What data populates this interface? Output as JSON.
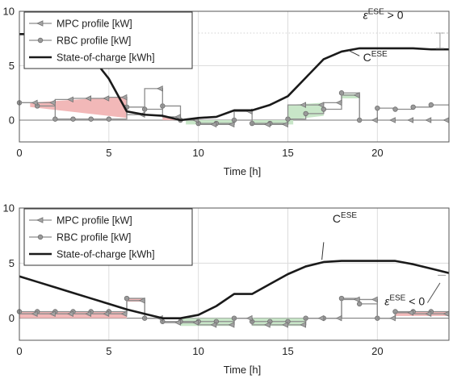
{
  "colors": {
    "mpc": "#8c8c8c",
    "rbc": "#8c8c8c",
    "soc": "#1a1a1a",
    "charge_fill": "#f2b8b8",
    "discharge_fill": "#c8e6c8",
    "grid": "#dcdcdc",
    "axis": "#555555"
  },
  "chart_data": [
    {
      "type": "line",
      "xlabel": "Time [h]",
      "xlim": [
        0,
        24
      ],
      "ylim": [
        -2,
        10
      ],
      "xticks": [
        0,
        5,
        10,
        15,
        20
      ],
      "yticks": [
        0,
        5,
        10
      ],
      "grid": true,
      "legend_placement": "top-left",
      "legend": [
        "MPC profile [kW]",
        "RBC profile [kW]",
        "State-of-charge [kWh]"
      ],
      "series": [
        {
          "name": "MPC profile [kW]",
          "x": [
            0,
            1,
            2,
            3,
            4,
            5,
            6,
            7,
            8,
            9,
            10,
            11,
            12,
            13,
            14,
            15,
            16,
            17,
            18,
            19,
            20,
            21,
            22,
            23
          ],
          "values": [
            1.6,
            1.6,
            1.9,
            2.0,
            2.0,
            2.1,
            0.5,
            2.9,
            0.3,
            0.0,
            -0.4,
            -0.4,
            0.8,
            -0.4,
            -0.4,
            1.4,
            1.4,
            1.6,
            2.3,
            0.0,
            0.0,
            0.0,
            0.0,
            0.0
          ]
        },
        {
          "name": "RBC profile [kW]",
          "x": [
            0,
            1,
            2,
            3,
            4,
            5,
            6,
            7,
            8,
            9,
            10,
            11,
            12,
            13,
            14,
            15,
            16,
            17,
            18,
            19,
            20,
            21,
            22,
            23
          ],
          "values": [
            1.6,
            1.3,
            0.1,
            0.1,
            0.1,
            0.1,
            1.2,
            1.0,
            1.3,
            0.0,
            -0.3,
            -0.3,
            0.0,
            -0.3,
            -0.3,
            0.1,
            0.6,
            1.0,
            2.5,
            0.0,
            1.1,
            1.0,
            1.2,
            1.4
          ]
        },
        {
          "name": "State-of-charge [kWh]",
          "x": [
            0,
            1,
            2,
            3,
            4,
            5,
            6,
            7,
            8,
            9,
            10,
            11,
            12,
            13,
            14,
            15,
            16,
            17,
            18,
            19,
            20,
            21,
            22,
            23,
            24
          ],
          "values": [
            7.9,
            7.9,
            7.8,
            7.0,
            5.9,
            3.8,
            0.8,
            0.5,
            0.4,
            0.0,
            0.2,
            0.3,
            0.9,
            0.9,
            1.4,
            2.2,
            3.9,
            5.6,
            6.3,
            6.6,
            6.6,
            6.6,
            6.6,
            6.5,
            6.5
          ]
        }
      ],
      "shaded_regions": [
        {
          "type": "charge",
          "x0": 0.6,
          "x1": 6,
          "lower": [
            1.2,
            0.2
          ],
          "upper": [
            1.6,
            2.2
          ]
        },
        {
          "type": "charge",
          "x0": 8,
          "x1": 9,
          "lower": [
            0.0,
            0.0
          ],
          "upper": [
            0.3,
            0.1
          ]
        },
        {
          "type": "discharge",
          "x0": 9.3,
          "x1": 12,
          "lower": [
            -0.4,
            -0.4
          ],
          "upper": [
            0.0,
            0.0
          ]
        },
        {
          "type": "discharge",
          "x0": 13,
          "x1": 15.3,
          "lower": [
            -0.4,
            -0.4
          ],
          "upper": [
            0.0,
            0.0
          ]
        },
        {
          "type": "discharge",
          "x0": 15,
          "x1": 17,
          "lower": [
            0.0,
            0.4
          ],
          "upper": [
            1.4,
            1.6
          ]
        },
        {
          "type": "discharge",
          "x0": 18,
          "x1": 19,
          "lower": [
            2.0,
            2.0
          ],
          "upper": [
            2.4,
            2.4
          ]
        }
      ],
      "annotations": [
        {
          "text_base": "C",
          "text_sup": "ESE",
          "x": 19.2,
          "y": 5.4
        },
        {
          "text_base": "ε",
          "text_sup": "ESE",
          "text_rest": " > 0",
          "x": 19.2,
          "y": 9.3
        }
      ]
    },
    {
      "type": "line",
      "xlabel": "Time [h]",
      "xlim": [
        0,
        24
      ],
      "ylim": [
        -2,
        10
      ],
      "xticks": [
        0,
        5,
        10,
        15,
        20
      ],
      "yticks": [
        0,
        5,
        10
      ],
      "grid": true,
      "legend_placement": "top-left",
      "legend": [
        "MPC profile [kW]",
        "RBC profile [kW]",
        "State-of-charge [kWh]"
      ],
      "series": [
        {
          "name": "MPC profile [kW]",
          "x": [
            0,
            1,
            2,
            3,
            4,
            5,
            6,
            7,
            8,
            9,
            10,
            11,
            12,
            13,
            14,
            15,
            16,
            17,
            18,
            19,
            20,
            21,
            22,
            23
          ],
          "values": [
            0.4,
            0.4,
            0.4,
            0.4,
            0.4,
            0.4,
            1.6,
            0.0,
            -0.4,
            -0.4,
            -0.6,
            -0.6,
            0.0,
            -0.6,
            -0.6,
            -0.6,
            0.0,
            0.0,
            1.7,
            1.7,
            0.0,
            0.5,
            0.4,
            0.4
          ]
        },
        {
          "name": "RBC profile [kW]",
          "x": [
            0,
            1,
            2,
            3,
            4,
            5,
            6,
            7,
            8,
            9,
            10,
            11,
            12,
            13,
            14,
            15,
            16,
            17,
            18,
            19,
            20,
            21,
            22,
            23
          ],
          "values": [
            0.6,
            0.6,
            0.6,
            0.6,
            0.6,
            0.6,
            1.8,
            0.0,
            -0.3,
            -0.3,
            -0.3,
            -0.3,
            0.0,
            -0.3,
            -0.3,
            -0.3,
            0.0,
            0.0,
            1.8,
            1.3,
            0.0,
            0.6,
            0.6,
            0.6
          ]
        },
        {
          "name": "State-of-charge [kWh]",
          "x": [
            0,
            1,
            2,
            3,
            4,
            5,
            6,
            7,
            8,
            9,
            10,
            11,
            12,
            13,
            14,
            15,
            16,
            17,
            18,
            19,
            20,
            21,
            22,
            23,
            24
          ],
          "values": [
            3.8,
            3.3,
            2.8,
            2.3,
            1.8,
            1.3,
            0.8,
            0.4,
            0.0,
            0.0,
            0.3,
            1.1,
            2.2,
            2.2,
            3.1,
            4.0,
            4.7,
            5.1,
            5.2,
            5.2,
            5.2,
            5.2,
            4.9,
            4.5,
            4.1
          ]
        }
      ],
      "shaded_regions": [
        {
          "type": "charge",
          "x0": 0,
          "x1": 6,
          "lower": [
            0.0,
            0.0
          ],
          "upper": [
            0.6,
            0.6
          ]
        },
        {
          "type": "charge",
          "x0": 6,
          "x1": 7,
          "lower": [
            1.5,
            1.5
          ],
          "upper": [
            1.8,
            1.8
          ]
        },
        {
          "type": "discharge",
          "x0": 9,
          "x1": 12,
          "lower": [
            -0.7,
            -0.7
          ],
          "upper": [
            0.0,
            0.0
          ]
        },
        {
          "type": "discharge",
          "x0": 13,
          "x1": 16,
          "lower": [
            -0.7,
            -0.7
          ],
          "upper": [
            0.0,
            0.0
          ]
        },
        {
          "type": "charge",
          "x0": 21,
          "x1": 24,
          "lower": [
            0.2,
            0.2
          ],
          "upper": [
            0.6,
            0.6
          ]
        }
      ],
      "annotations": [
        {
          "text_base": "C",
          "text_sup": "ESE",
          "x": 17.5,
          "y": 8.7
        },
        {
          "text_base": "ε",
          "text_sup": "ESE",
          "text_rest": " < 0",
          "x": 20.4,
          "y": 1.2
        }
      ]
    }
  ]
}
